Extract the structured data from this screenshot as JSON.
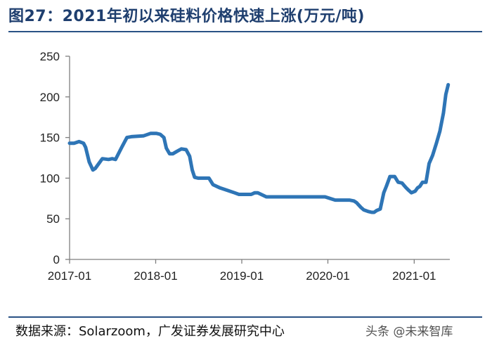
{
  "header": {
    "title": "图27：2021年初以来硅料价格快速上涨(万元/吨)"
  },
  "footer": {
    "source": "数据来源：Solarzoom，广发证券发展研究中心",
    "watermark": "头条 @未来智库"
  },
  "chart_data": {
    "type": "line",
    "title": "",
    "xlabel": "",
    "ylabel": "",
    "xlim": [
      "2017-01",
      "2021-06"
    ],
    "ylim": [
      0,
      250
    ],
    "y_ticks": [
      0,
      50,
      100,
      150,
      200,
      250
    ],
    "x_ticks": [
      "2017-01",
      "2018-01",
      "2019-01",
      "2020-01",
      "2021-01"
    ],
    "grid": false,
    "legend": "none",
    "colors": {
      "line": "#2e75b6",
      "axis": "#7f7f7f",
      "title": "#1f3f6f"
    },
    "series": [
      {
        "x": [
          "2017-01-01",
          "2017-01-20",
          "2017-02-10",
          "2017-03-01",
          "2017-03-10",
          "2017-03-25",
          "2017-04-10",
          "2017-04-20",
          "2017-05-05",
          "2017-05-20",
          "2017-06-15",
          "2017-07-01",
          "2017-07-15",
          "2017-08-10",
          "2017-09-01",
          "2017-09-20",
          "2017-11-10",
          "2017-12-10",
          "2017-12-25",
          "2018-01-05",
          "2018-01-20",
          "2018-02-05",
          "2018-02-15",
          "2018-03-01",
          "2018-03-15",
          "2018-04-01",
          "2018-04-20",
          "2018-05-10",
          "2018-05-25",
          "2018-06-05",
          "2018-06-15",
          "2018-07-01",
          "2018-08-15",
          "2018-09-01",
          "2018-10-01",
          "2018-11-01",
          "2018-12-01",
          "2018-12-20",
          "2019-01-10",
          "2019-02-10",
          "2019-02-25",
          "2019-03-10",
          "2019-04-15",
          "2019-06-01",
          "2019-08-01",
          "2019-10-01",
          "2019-11-15",
          "2019-12-20",
          "2020-01-10",
          "2020-02-01",
          "2020-03-01",
          "2020-04-01",
          "2020-04-20",
          "2020-05-01",
          "2020-05-20",
          "2020-06-01",
          "2020-06-20",
          "2020-07-05",
          "2020-07-15",
          "2020-07-25",
          "2020-08-10",
          "2020-08-25",
          "2020-09-05",
          "2020-09-20",
          "2020-10-10",
          "2020-10-25",
          "2020-11-10",
          "2020-11-25",
          "2020-12-05",
          "2020-12-20",
          "2021-01-05",
          "2021-01-15",
          "2021-01-25",
          "2021-02-05",
          "2021-02-20",
          "2021-03-05",
          "2021-03-20",
          "2021-04-05",
          "2021-04-20",
          "2021-05-05",
          "2021-05-15",
          "2021-05-25"
        ],
        "values": [
          143,
          143,
          145,
          143,
          138,
          120,
          110,
          112,
          118,
          124,
          123,
          124,
          123,
          138,
          150,
          151,
          152,
          155,
          155,
          155,
          154,
          150,
          137,
          130,
          130,
          133,
          136,
          135,
          127,
          110,
          101,
          100,
          100,
          92,
          88,
          85,
          82,
          80,
          80,
          80,
          82,
          82,
          77,
          77,
          77,
          77,
          77,
          77,
          75,
          73,
          73,
          73,
          72,
          70,
          64,
          61,
          59,
          58,
          58,
          60,
          62,
          82,
          90,
          102,
          102,
          95,
          94,
          89,
          86,
          82,
          84,
          88,
          90,
          95,
          95,
          118,
          128,
          143,
          158,
          180,
          203,
          215
        ]
      }
    ]
  }
}
